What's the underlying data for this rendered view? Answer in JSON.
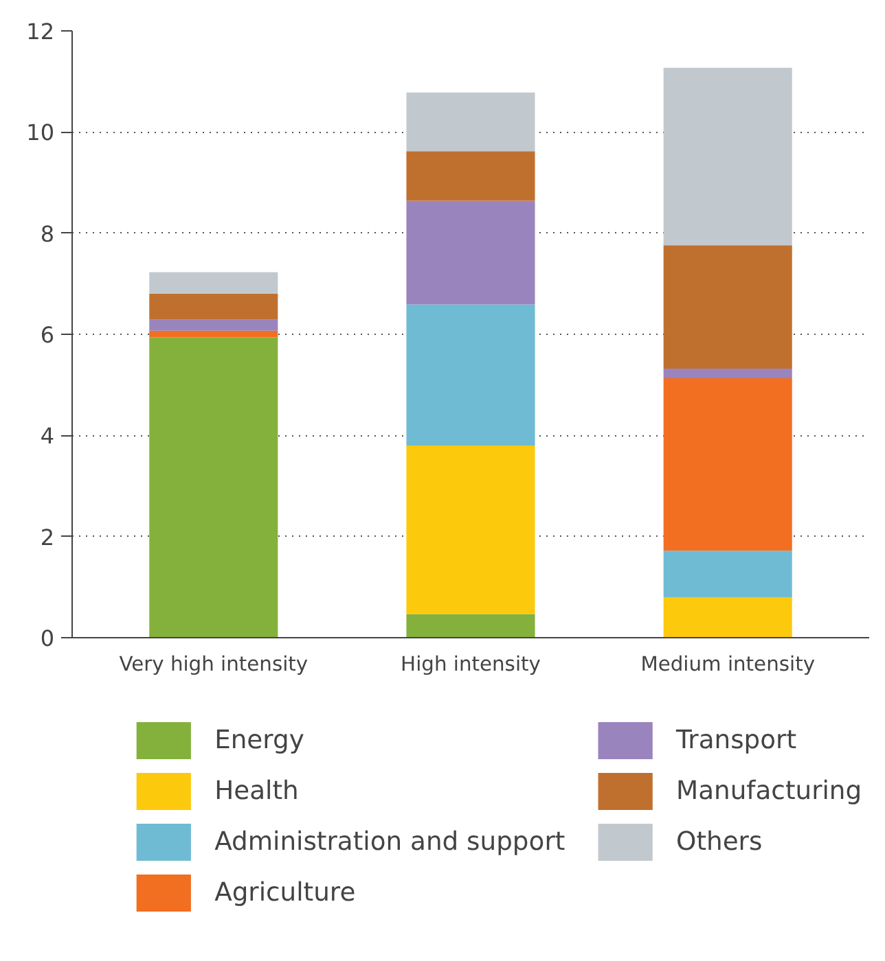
{
  "chart_data": {
    "type": "bar",
    "stacked": true,
    "categories": [
      "Very high intensity",
      "High intensity",
      "Medium intensity"
    ],
    "series": [
      {
        "name": "Energy",
        "color": "#84b13c",
        "values": [
          5.94,
          0.47,
          0
        ]
      },
      {
        "name": "Health",
        "color": "#fdc90c",
        "values": [
          0,
          3.33,
          0.8
        ]
      },
      {
        "name": "Administration and support",
        "color": "#6fbbd3",
        "values": [
          0,
          2.79,
          0.92
        ]
      },
      {
        "name": "Agriculture",
        "color": "#f26e21",
        "values": [
          0.13,
          0,
          3.41
        ]
      },
      {
        "name": "Transport",
        "color": "#9a84bd",
        "values": [
          0.22,
          2.05,
          0.19
        ]
      },
      {
        "name": "Manufacturing",
        "color": "#c0702e",
        "values": [
          0.51,
          0.98,
          2.44
        ]
      },
      {
        "name": "Others",
        "color": "#c1c9cf",
        "values": [
          0.43,
          1.16,
          3.51
        ]
      }
    ],
    "ylim": [
      0,
      12
    ],
    "yticks": [
      0,
      2,
      4,
      6,
      8,
      10,
      12
    ],
    "grid": "y",
    "legend": "bottom"
  }
}
